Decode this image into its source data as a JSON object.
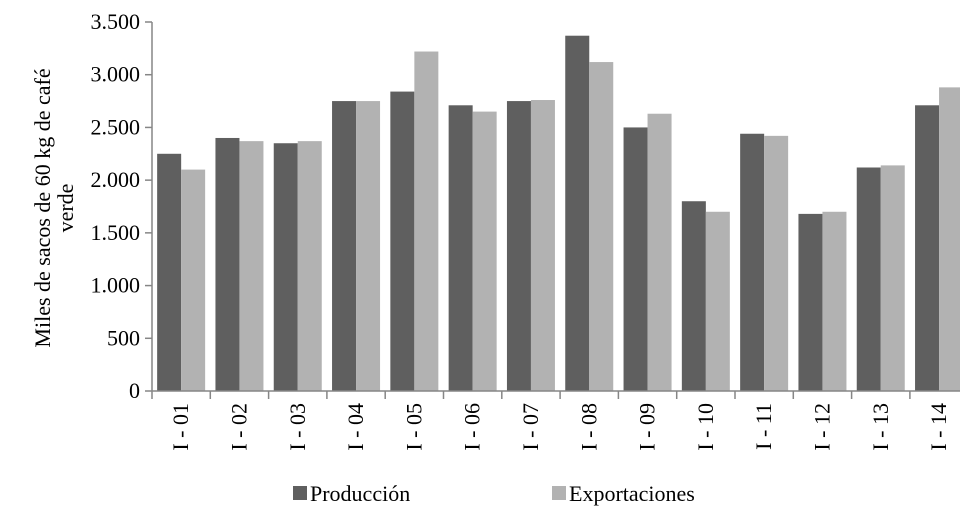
{
  "chart_data": {
    "type": "bar",
    "categories": [
      "I - 01",
      "I - 02",
      "I - 03",
      "I - 04",
      "I - 05",
      "I - 06",
      "I - 07",
      "I - 08",
      "I - 09",
      "I - 10",
      "I - 11",
      "I - 12",
      "I - 13",
      "I - 14"
    ],
    "series": [
      {
        "name": "Producción",
        "color": "#5f5f5f",
        "values": [
          2250,
          2400,
          2350,
          2750,
          2840,
          2710,
          2750,
          3370,
          2500,
          1800,
          2440,
          1680,
          2120,
          2710
        ]
      },
      {
        "name": "Exportaciones",
        "color": "#b2b2b2",
        "values": [
          2100,
          2370,
          2370,
          2750,
          3220,
          2650,
          2760,
          3120,
          2630,
          1700,
          2420,
          1700,
          2140,
          2880
        ]
      }
    ],
    "title": "",
    "xlabel": "",
    "ylabel_lines": [
      "Miles de sacos de 60 kg de café",
      "verde"
    ],
    "ylim": [
      0,
      3500
    ],
    "yticks": [
      0,
      500,
      1000,
      1500,
      2000,
      2500,
      3000,
      3500
    ],
    "ytick_labels": [
      "0",
      "500",
      "1.000",
      "1.500",
      "2.000",
      "2.500",
      "3.000",
      "3.500"
    ],
    "grid": false,
    "legend_position": "bottom"
  }
}
